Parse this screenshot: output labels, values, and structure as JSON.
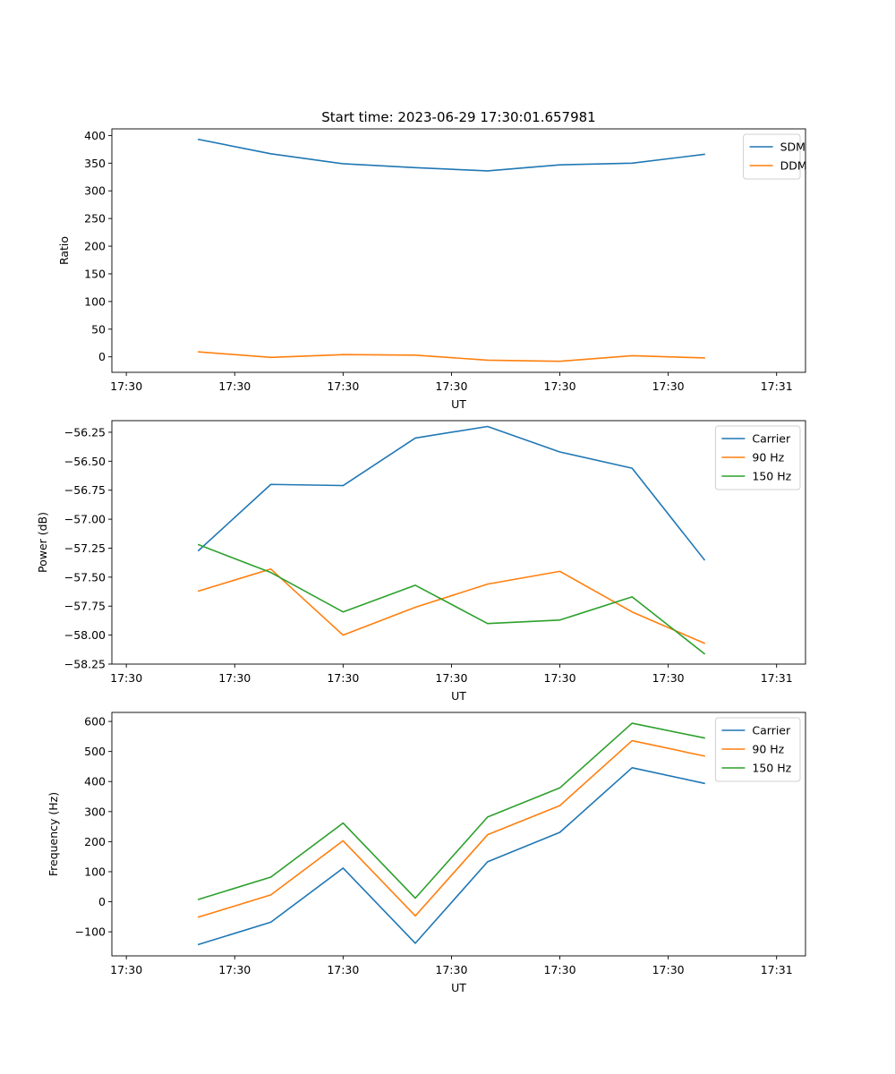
{
  "title": "Start time: 2023-06-29 17:30:01.657981",
  "colors": {
    "blue": "#1f77b4",
    "orange": "#ff7f0e",
    "green": "#2ca02c"
  },
  "chart_data": [
    {
      "type": "line",
      "title": "Start time: 2023-06-29 17:30:01.657981",
      "xlabel": "UT",
      "ylabel": "Ratio",
      "xlim": [
        -0.15,
        1.05
      ],
      "ylim": [
        -28,
        412
      ],
      "yticks": [
        0,
        50,
        100,
        150,
        200,
        250,
        300,
        350,
        400
      ],
      "ytick_labels": [
        "0",
        "50",
        "100",
        "150",
        "200",
        "250",
        "300",
        "350",
        "400"
      ],
      "xticks": [
        -0.125,
        0.0625,
        0.25,
        0.4375,
        0.625,
        0.8125,
        1.0
      ],
      "xtick_labels": [
        "17:30",
        "17:30",
        "17:30",
        "17:30",
        "17:30",
        "17:30",
        "17:31"
      ],
      "x": [
        0.0,
        0.125,
        0.25,
        0.375,
        0.5,
        0.625,
        0.75,
        0.875
      ],
      "series": [
        {
          "name": "SDM",
          "color": "#1f77b4",
          "values": [
            393,
            367,
            349,
            342,
            336,
            347,
            350,
            366
          ]
        },
        {
          "name": "DDM",
          "color": "#ff7f0e",
          "values": [
            9,
            -1,
            4,
            3,
            -6,
            -8,
            2,
            -2
          ]
        }
      ],
      "legend": "top-right",
      "grid": false
    },
    {
      "type": "line",
      "title": "",
      "xlabel": "UT",
      "ylabel": "Power (dB)",
      "xlim": [
        -0.15,
        1.05
      ],
      "ylim": [
        -58.25,
        -56.15
      ],
      "yticks": [
        -58.25,
        -58.0,
        -57.75,
        -57.5,
        -57.25,
        -57.0,
        -56.75,
        -56.5,
        -56.25
      ],
      "ytick_labels": [
        "−58.25",
        "−58.00",
        "−57.75",
        "−57.50",
        "−57.25",
        "−57.00",
        "−56.75",
        "−56.50",
        "−56.25"
      ],
      "xticks": [
        -0.125,
        0.0625,
        0.25,
        0.4375,
        0.625,
        0.8125,
        1.0
      ],
      "xtick_labels": [
        "17:30",
        "17:30",
        "17:30",
        "17:30",
        "17:30",
        "17:30",
        "17:31"
      ],
      "x": [
        0.0,
        0.125,
        0.25,
        0.375,
        0.5,
        0.625,
        0.75,
        0.875
      ],
      "series": [
        {
          "name": "Carrier",
          "color": "#1f77b4",
          "values": [
            -57.27,
            -56.7,
            -56.71,
            -56.3,
            -56.2,
            -56.42,
            -56.56,
            -57.35
          ]
        },
        {
          "name": "90 Hz",
          "color": "#ff7f0e",
          "values": [
            -57.62,
            -57.43,
            -58.0,
            -57.76,
            -57.56,
            -57.45,
            -57.8,
            -58.07
          ]
        },
        {
          "name": "150 Hz",
          "color": "#2ca02c",
          "values": [
            -57.22,
            -57.46,
            -57.8,
            -57.57,
            -57.9,
            -57.87,
            -57.67,
            -58.16
          ]
        }
      ],
      "legend": "top-right",
      "grid": false
    },
    {
      "type": "line",
      "title": "",
      "xlabel": "UT",
      "ylabel": "Frequency (Hz)",
      "xlim": [
        -0.15,
        1.05
      ],
      "ylim": [
        -180,
        630
      ],
      "yticks": [
        -100,
        0,
        100,
        200,
        300,
        400,
        500,
        600
      ],
      "ytick_labels": [
        "−100",
        "0",
        "100",
        "200",
        "300",
        "400",
        "500",
        "600"
      ],
      "xticks": [
        -0.125,
        0.0625,
        0.25,
        0.4375,
        0.625,
        0.8125,
        1.0
      ],
      "xtick_labels": [
        "17:30",
        "17:30",
        "17:30",
        "17:30",
        "17:30",
        "17:30",
        "17:31"
      ],
      "x": [
        0.0,
        0.125,
        0.25,
        0.375,
        0.5,
        0.625,
        0.75,
        0.875
      ],
      "series": [
        {
          "name": "Carrier",
          "color": "#1f77b4",
          "values": [
            -142,
            -68,
            112,
            -138,
            133,
            231,
            446,
            394
          ]
        },
        {
          "name": "90 Hz",
          "color": "#ff7f0e",
          "values": [
            -51,
            23,
            203,
            -47,
            223,
            320,
            536,
            485
          ]
        },
        {
          "name": "150 Hz",
          "color": "#2ca02c",
          "values": [
            8,
            82,
            262,
            12,
            282,
            379,
            594,
            545
          ]
        }
      ],
      "legend": "top-right",
      "grid": false
    }
  ]
}
